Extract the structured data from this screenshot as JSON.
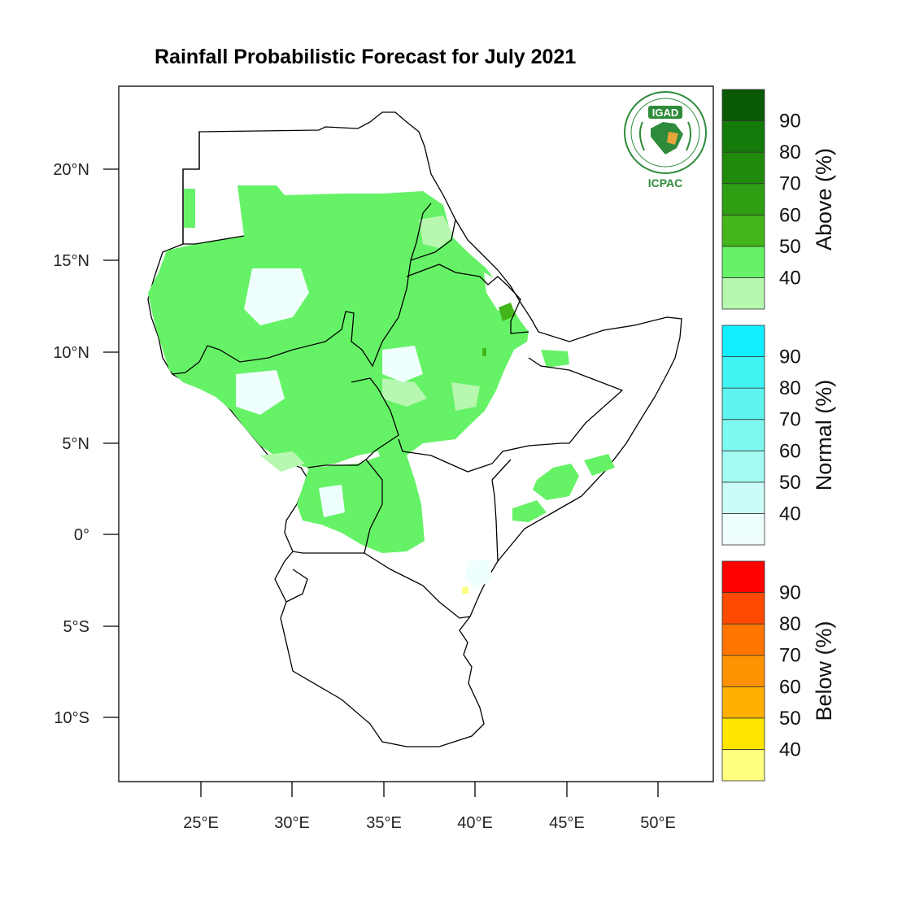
{
  "title": "Rainfall Probabilistic Forecast for July 2021",
  "logo": {
    "top_text": "IGAD",
    "bottom_text": "ICPAC",
    "color": "#2e8b3a"
  },
  "axes": {
    "lat_labels": [
      "20°N",
      "15°N",
      "10°N",
      "5°N",
      "0°",
      "5°S",
      "10°S"
    ],
    "lon_labels": [
      "25°E",
      "30°E",
      "35°E",
      "40°E",
      "45°E",
      "50°E"
    ]
  },
  "legend": {
    "above": {
      "title": "Above (%)",
      "ticks": [
        "40",
        "50",
        "60",
        "70",
        "80",
        "90"
      ],
      "colors": [
        "#b7f7b0",
        "#66f266",
        "#44b51a",
        "#2e9f13",
        "#1f8a0c",
        "#147a0a",
        "#0a5a05"
      ]
    },
    "normal": {
      "title": "Normal (%)",
      "ticks": [
        "40",
        "50",
        "60",
        "70",
        "80",
        "90"
      ],
      "colors": [
        "#eefffd",
        "#ccfcf8",
        "#a3fbf4",
        "#7ef9ef",
        "#5ff4f0",
        "#3ff3f3",
        "#11eeff"
      ]
    },
    "below": {
      "title": "Below (%)",
      "ticks": [
        "40",
        "50",
        "60",
        "70",
        "80",
        "90"
      ],
      "colors": [
        "#ffff80",
        "#ffe600",
        "#ffb000",
        "#ff9200",
        "#ff7500",
        "#ff4a00",
        "#ff0000"
      ]
    }
  }
}
